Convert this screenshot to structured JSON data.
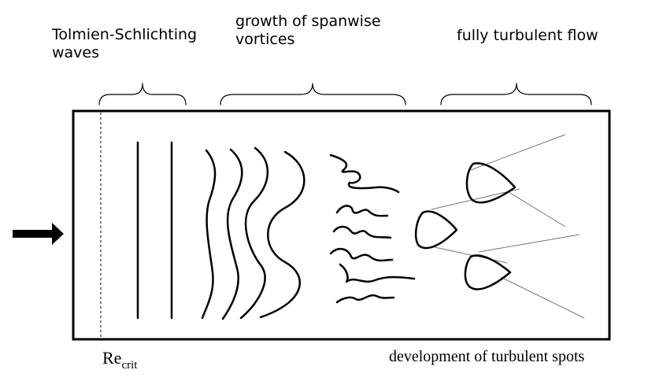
{
  "labels": {
    "ts_line1": "Tolmien-Schlichting",
    "ts_line2": "waves",
    "sv_line1": "growth of spanwise",
    "sv_line2": "vortices",
    "turbulent": "fully turbulent flow",
    "re_main": "Re",
    "re_sub": "crit",
    "spots": "development of turbulent spots"
  },
  "icons": {
    "flow_arrow": "arrow-right-icon",
    "brace": "curly-brace-icon"
  },
  "colors": {
    "ink": "#000000",
    "thin_line": "#777777",
    "background": "#ffffff"
  }
}
